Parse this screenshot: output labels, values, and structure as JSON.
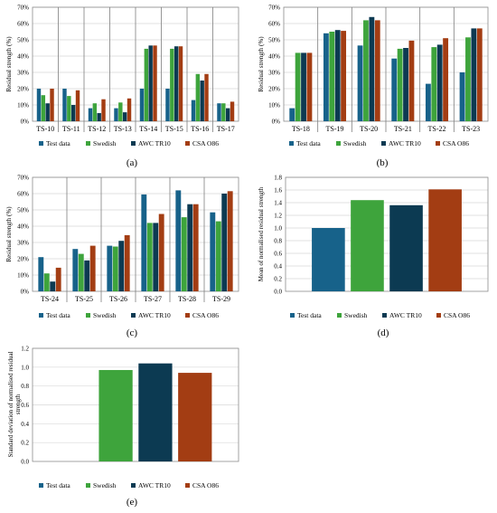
{
  "legend_labels": [
    "Test data",
    "Swedish",
    "AWC TR10",
    "CSA O86"
  ],
  "colors": {
    "test_data": "#17628a",
    "swedish": "#3ea43c",
    "awc": "#0c3a52",
    "csa": "#a33d13",
    "axis": "#8c8c8c",
    "grid": "#d9d9d9",
    "group_sep": "#7f7f7f"
  },
  "chart_data": [
    {
      "type": "bar",
      "panel_label": "(a)",
      "ylabel": "Residual strength (%)",
      "yticks": [
        "0%",
        "10%",
        "20%",
        "30%",
        "40%",
        "50%",
        "60%",
        "70%"
      ],
      "ylim": [
        0,
        70
      ],
      "grid": true,
      "group_separators": true,
      "legend": "bottom",
      "categories": [
        "TS-10",
        "TS-11",
        "TS-12",
        "TS-13",
        "TS-14",
        "TS-15",
        "TS-16",
        "TS-17"
      ],
      "series": [
        {
          "name": "Test data",
          "values": [
            20,
            20,
            8,
            8,
            20,
            20,
            13,
            11
          ]
        },
        {
          "name": "Swedish",
          "values": [
            16,
            15.5,
            11,
            11.5,
            44.5,
            44.5,
            29,
            11
          ]
        },
        {
          "name": "AWC TR10",
          "values": [
            11,
            10,
            5,
            5.5,
            46.5,
            46,
            25,
            8
          ]
        },
        {
          "name": "CSA O86",
          "values": [
            20,
            19,
            13.5,
            14,
            46.5,
            46,
            29,
            12
          ]
        }
      ]
    },
    {
      "type": "bar",
      "panel_label": "(b)",
      "ylabel": "Residual strength (%)",
      "yticks": [
        "0%",
        "10%",
        "20%",
        "30%",
        "40%",
        "50%",
        "60%",
        "70%"
      ],
      "ylim": [
        0,
        70
      ],
      "grid": true,
      "group_separators": true,
      "legend": "bottom",
      "categories": [
        "TS-18",
        "TS-19",
        "TS-20",
        "TS-21",
        "TS-22",
        "TS-23"
      ],
      "series": [
        {
          "name": "Test data",
          "values": [
            8,
            54,
            46.5,
            38.5,
            23,
            30
          ]
        },
        {
          "name": "Swedish",
          "values": [
            42,
            55,
            62,
            44.5,
            45.5,
            51.5
          ]
        },
        {
          "name": "AWC TR10",
          "values": [
            42,
            56,
            64,
            45,
            47,
            57
          ]
        },
        {
          "name": "CSA O86",
          "values": [
            42,
            55.5,
            62,
            49.5,
            51,
            57
          ]
        }
      ]
    },
    {
      "type": "bar",
      "panel_label": "(c)",
      "ylabel": "Residual strength (%)",
      "yticks": [
        "0%",
        "10%",
        "20%",
        "30%",
        "40%",
        "50%",
        "60%",
        "70%"
      ],
      "ylim": [
        0,
        70
      ],
      "grid": true,
      "group_separators": true,
      "legend": "bottom",
      "categories": [
        "TS-24",
        "TS-25",
        "TS-26",
        "TS-27",
        "TS-28",
        "TS-29"
      ],
      "series": [
        {
          "name": "Test data",
          "values": [
            21,
            26,
            28,
            59.5,
            62,
            48.5
          ]
        },
        {
          "name": "Swedish",
          "values": [
            11,
            23,
            27.5,
            42,
            45.5,
            43
          ]
        },
        {
          "name": "AWC TR10",
          "values": [
            6,
            19,
            31,
            42,
            53.5,
            60
          ]
        },
        {
          "name": "CSA O86",
          "values": [
            14.5,
            28,
            34.5,
            47.5,
            53.5,
            61.5
          ]
        }
      ]
    },
    {
      "type": "bar",
      "panel_label": "(d)",
      "ylabel": "Mean of normalised residual strength",
      "yticks": [
        "0.0",
        "0.2",
        "0.4",
        "0.6",
        "0.8",
        "1.0",
        "1.2",
        "1.4",
        "1.6",
        "1.8"
      ],
      "ylim": [
        0,
        1.8
      ],
      "grid": true,
      "group_separators": false,
      "legend": "bottom",
      "categories": [
        "Test data",
        "Swedish",
        "AWC TR10",
        "CSA O86"
      ],
      "values": [
        1.0,
        1.44,
        1.36,
        1.61
      ]
    },
    {
      "type": "bar",
      "panel_label": "(e)",
      "ylabel": "Standard deviation of normalised residual strength",
      "yticks": [
        "0.0",
        "0.2",
        "0.4",
        "0.6",
        "0.8",
        "1.0",
        "1.2"
      ],
      "ylim": [
        0,
        1.2
      ],
      "grid": true,
      "group_separators": false,
      "legend": "bottom",
      "categories": [
        "Test data",
        "Swedish",
        "AWC TR10",
        "CSA O86"
      ],
      "values": [
        0.0,
        0.97,
        1.04,
        0.94
      ]
    }
  ]
}
